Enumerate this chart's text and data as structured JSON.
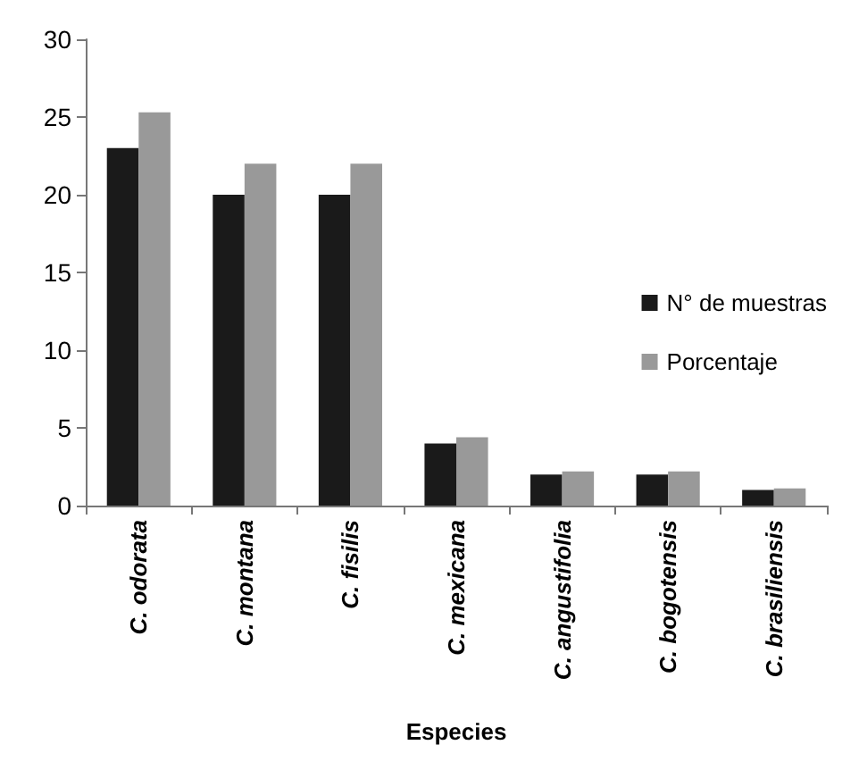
{
  "chart_data": {
    "type": "bar",
    "xlabel": "Especies",
    "categories": [
      "C. odorata",
      "C. montana",
      "C. fisilis",
      "C. mexicana",
      "C. angustifolia",
      "C. bogotensis",
      "C. brasiliensis"
    ],
    "series": [
      {
        "name": "N° de muestras",
        "color": "#1a1a1a",
        "values": [
          23,
          20,
          20,
          4,
          2,
          2,
          1
        ]
      },
      {
        "name": "Porcentaje",
        "color": "#999999",
        "values": [
          25.3,
          22,
          22,
          4.4,
          2.2,
          2.2,
          1.1
        ]
      }
    ],
    "ylim": [
      0,
      30
    ],
    "yticks": [
      0,
      5,
      10,
      15,
      20,
      25,
      30
    ],
    "grid": false,
    "legend": "right"
  }
}
